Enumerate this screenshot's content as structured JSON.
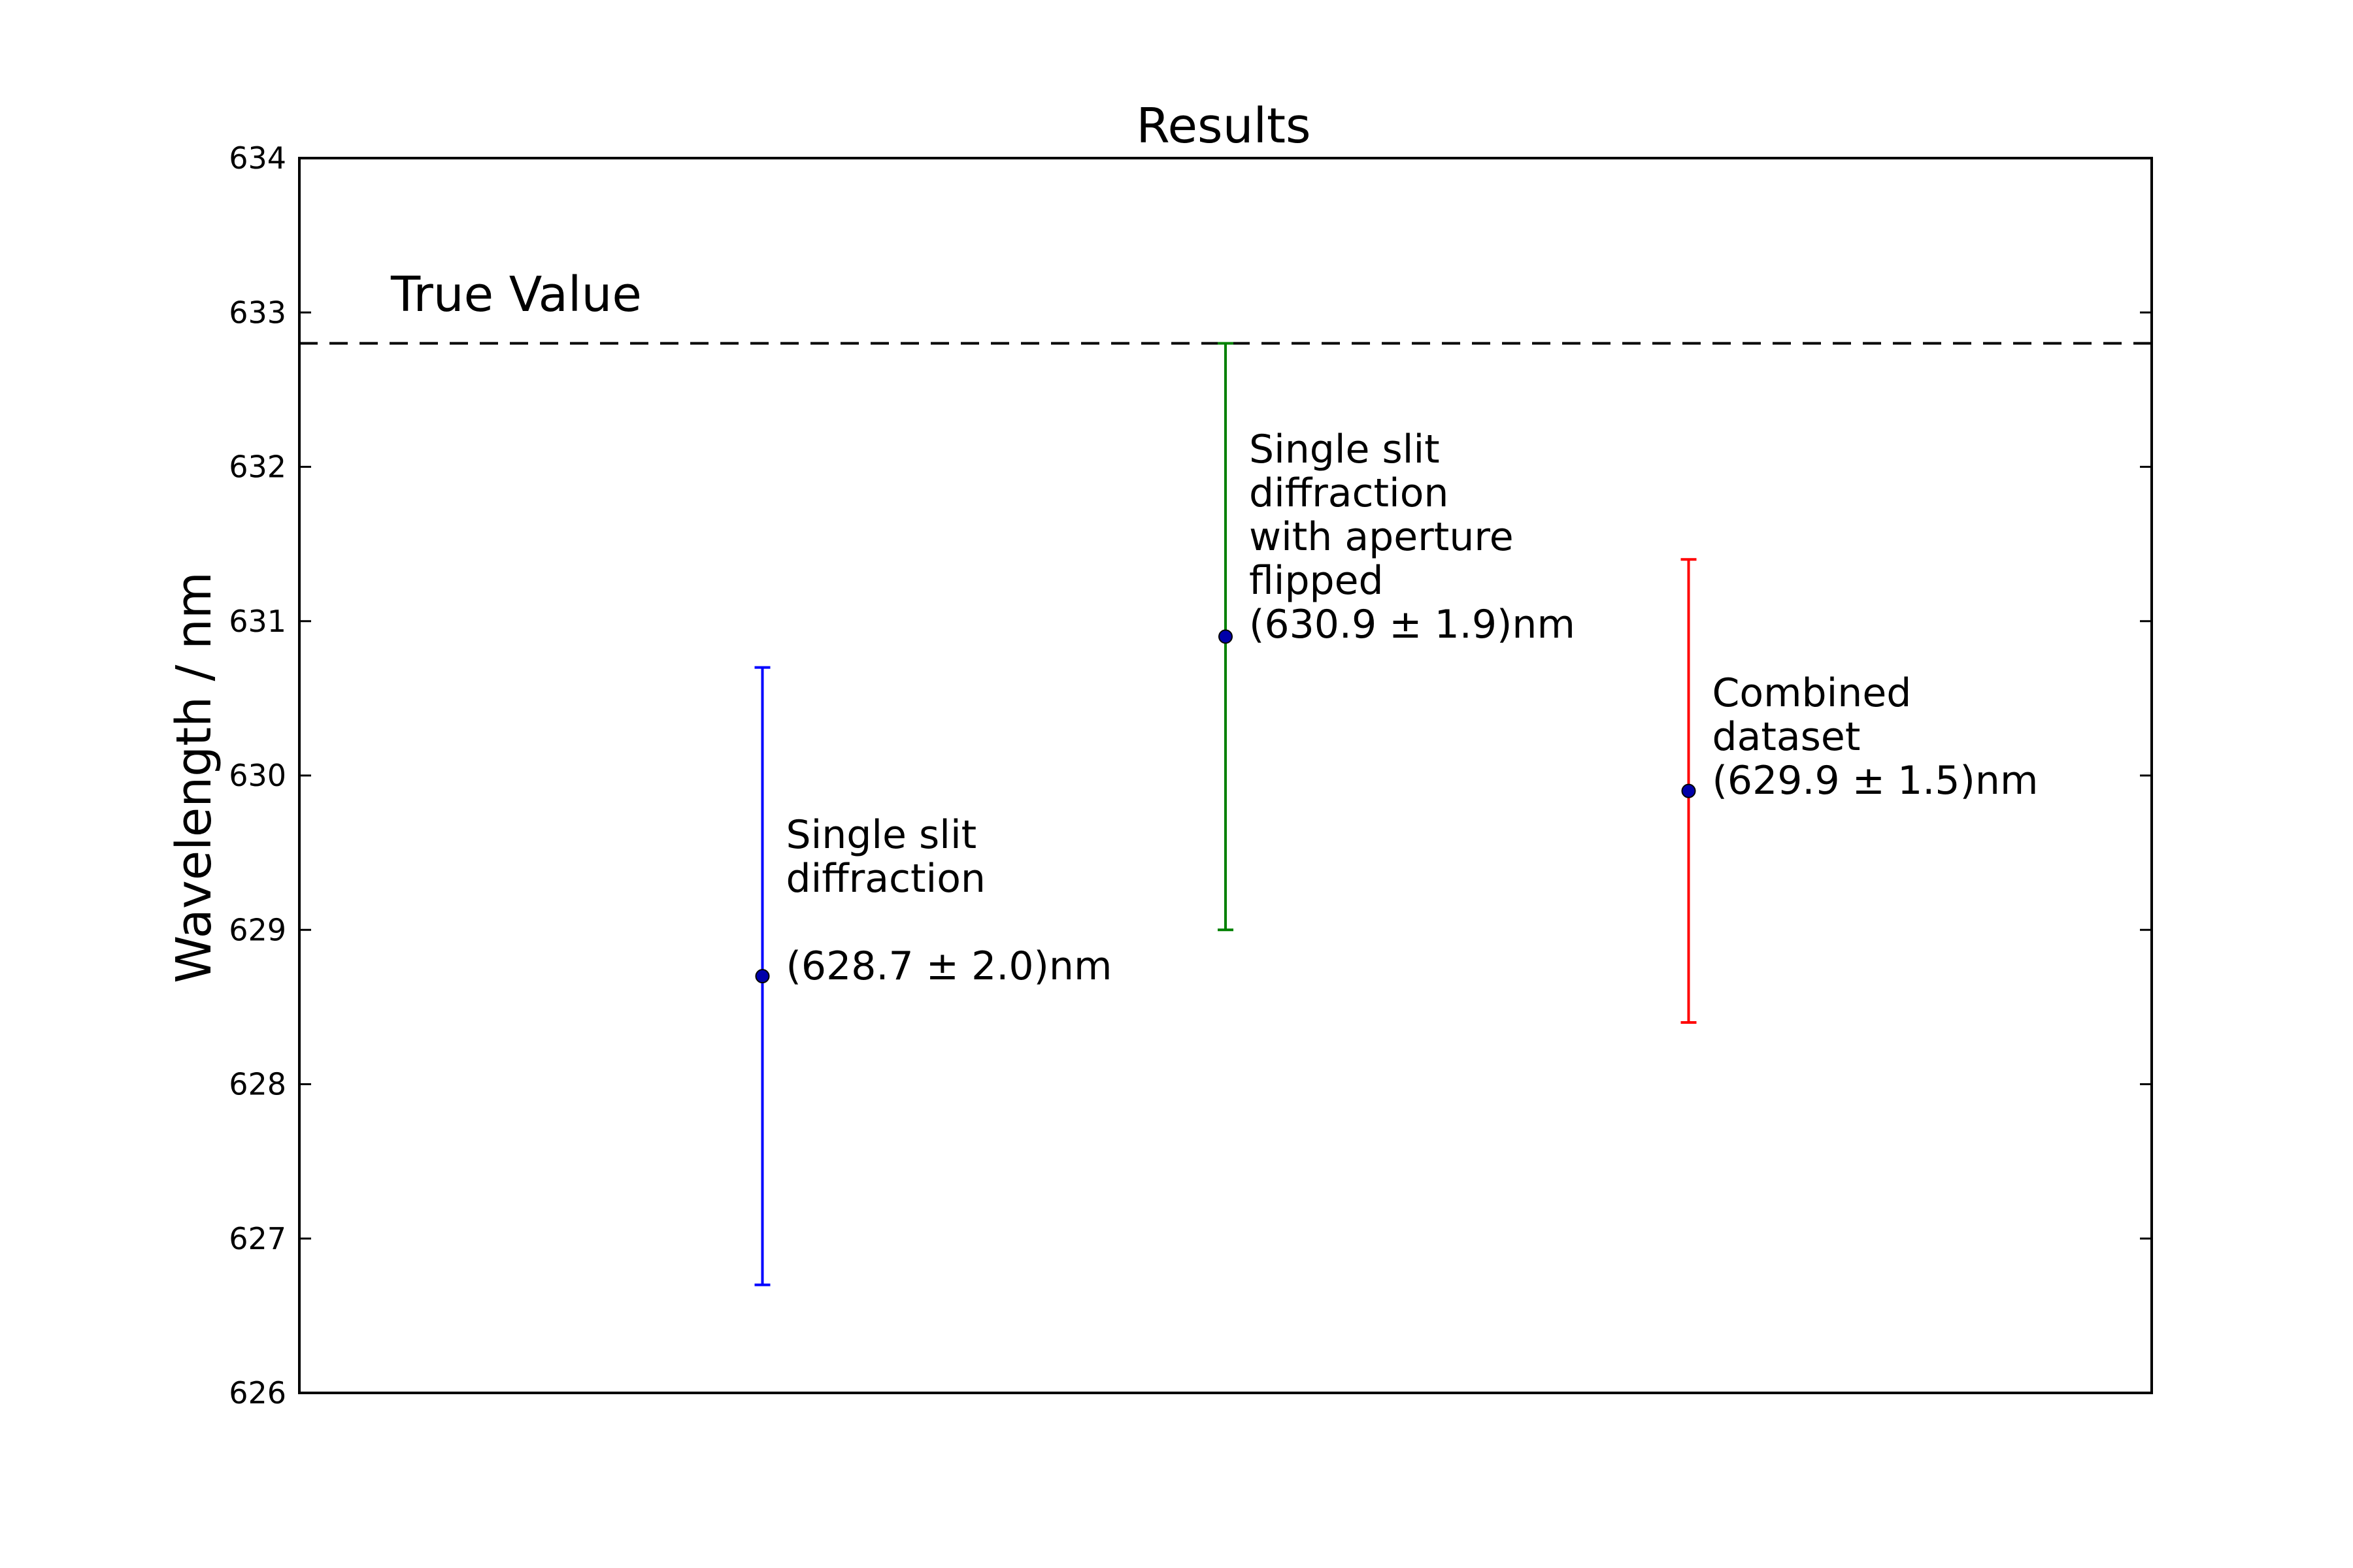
{
  "chart_data": {
    "type": "scatter",
    "title": "Results",
    "xlabel": "",
    "ylabel": "Wavelength / nm",
    "xlim": [
      0,
      4
    ],
    "ylim": [
      626,
      634
    ],
    "yticks": [
      626,
      627,
      628,
      629,
      630,
      631,
      632,
      633,
      634
    ],
    "grid": false,
    "reference_line": {
      "label": "True Value",
      "value": 632.8,
      "style": "dashed",
      "color": "#000000"
    },
    "series": [
      {
        "x": 1,
        "y": 628.7,
        "error": 2.0,
        "color": "#0000ff",
        "annotation_lines": [
          "Single slit",
          "diffraction",
          "",
          "(628.7 ± 2.0)nm"
        ]
      },
      {
        "x": 2,
        "y": 630.9,
        "error": 1.9,
        "color": "#008000",
        "annotation_lines": [
          "Single slit",
          "diffraction",
          "with aperture",
          "flipped",
          "(630.9 ± 1.9)nm"
        ]
      },
      {
        "x": 3,
        "y": 629.9,
        "error": 1.5,
        "color": "#ff0000",
        "annotation_lines": [
          "Combined",
          "dataset",
          "(629.9 ± 1.5)nm"
        ]
      }
    ],
    "marker_color": "#0000aa"
  }
}
